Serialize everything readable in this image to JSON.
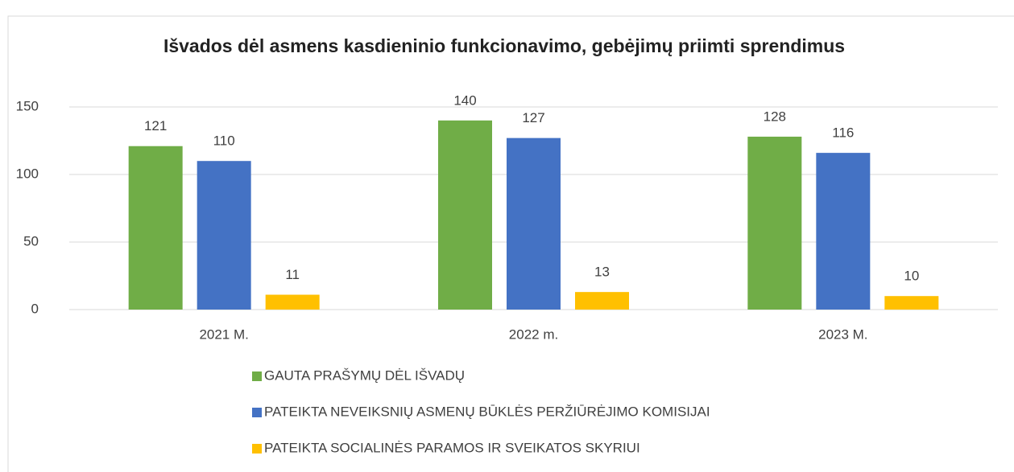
{
  "chart_data": {
    "type": "bar",
    "title": "Išvados dėl asmens kasdieninio funkcionavimo, gebėjimų priimti sprendimus",
    "categories": [
      "2021 M.",
      "2022 m.",
      "2023 M."
    ],
    "series": [
      {
        "name": "GAUTA PRAŠYMŲ DĖL IŠVADŲ",
        "color": "#70ad47",
        "values": [
          121,
          140,
          128
        ]
      },
      {
        "name": "PATEIKTA NEVEIKSNIŲ ASMENŲ BŪKLĖS PERŽIŪRĖJIMO KOMISIJAI",
        "color": "#4472c4",
        "values": [
          110,
          127,
          116
        ]
      },
      {
        "name": "PATEIKTA SOCIALINĖS PARAMOS IR SVEIKATOS SKYRIUI",
        "color": "#ffc000",
        "values": [
          11,
          13,
          10
        ]
      }
    ],
    "ylim": [
      0,
      150
    ],
    "yticks": [
      0,
      50,
      100,
      150
    ],
    "grid": true,
    "legend": "bottom"
  }
}
